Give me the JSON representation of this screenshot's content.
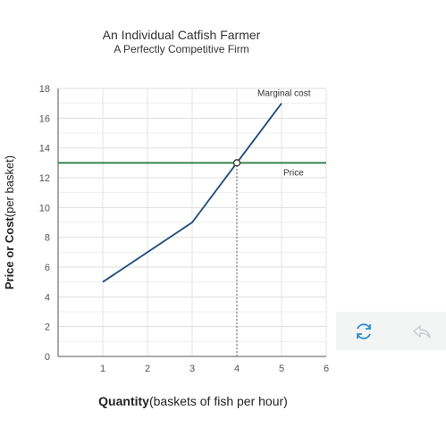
{
  "chart_data": {
    "type": "line",
    "title": "An Individual Catfish Farmer",
    "subtitle": "A Perfectly Competitive Firm",
    "ylabel_bold": "Price or Cost",
    "ylabel_rest": "(per basket)",
    "xlabel_bold": "Quantity",
    "xlabel_rest": "(baskets of fish per hour)",
    "xlim": [
      0,
      6
    ],
    "ylim": [
      0,
      18
    ],
    "xticks": [
      1,
      2,
      3,
      4,
      5,
      6
    ],
    "yticks": [
      0,
      2,
      4,
      6,
      8,
      10,
      12,
      14,
      16,
      18
    ],
    "grid": true,
    "series": [
      {
        "name": "Marginal cost",
        "color": "#1b4a7a",
        "x": [
          1,
          3,
          4,
          5
        ],
        "y": [
          5,
          9,
          13,
          17
        ]
      },
      {
        "name": "Price",
        "color": "#2e7d46",
        "x": [
          0,
          6
        ],
        "y": [
          13,
          13
        ]
      }
    ],
    "annotations": [
      {
        "type": "point",
        "x": 4,
        "y": 13
      },
      {
        "type": "dotted-vline",
        "x": 4,
        "from_y": 0,
        "to_y": 13
      }
    ]
  },
  "controls": {
    "refresh_icon": "refresh-icon",
    "undo_icon": "undo-icon",
    "accent": "#2b8ccf"
  }
}
